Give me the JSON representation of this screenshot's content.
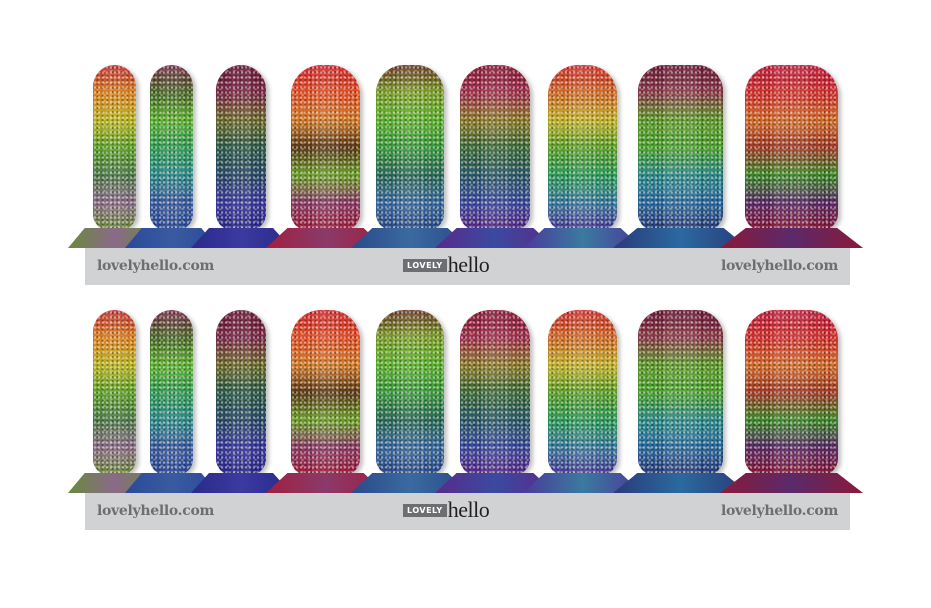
{
  "sheets": [
    {
      "left_url": "lovelyhello.com",
      "logo_box": "LOVELY",
      "logo_word": "hello",
      "right_url": "lovelyhello.com"
    },
    {
      "left_url": "lovelyhello.com",
      "logo_box": "LOVELY",
      "logo_word": "hello",
      "right_url": "lovelyhello.com"
    }
  ],
  "colors": {
    "strip": "#d1d2d4",
    "text": "#6d6e71"
  },
  "nail_palettes": [
    [
      "#c0303a",
      "#d9801f",
      "#b8b420",
      "#5aa02a",
      "#4c7a4a",
      "#8a6a8a",
      "#6a8a3a"
    ],
    [
      "#7a3050",
      "#4a6a2a",
      "#5ab030",
      "#2f9a55",
      "#2a8a8a",
      "#3a5aa0",
      "#2a4a9a"
    ],
    [
      "#6a1a3a",
      "#7a2a4a",
      "#6a6a2a",
      "#2a5a4a",
      "#2a4a6a",
      "#3a3aa0",
      "#2a2a8a"
    ],
    [
      "#d02830",
      "#e0502a",
      "#d07a2a",
      "#5a3a1a",
      "#6aa02a",
      "#8a3a6a",
      "#a02040"
    ],
    [
      "#6a3a2a",
      "#7aa02a",
      "#5ab030",
      "#3a9a40",
      "#2a6a5a",
      "#3a6aa0",
      "#2a4a8a"
    ],
    [
      "#8a1a3a",
      "#a03050",
      "#8a7a2a",
      "#3a6a3a",
      "#2a5a6a",
      "#3a4aa0",
      "#5a2a8a"
    ],
    [
      "#d03030",
      "#d06a2a",
      "#c0b02a",
      "#5aa02a",
      "#2a9a5a",
      "#3a7aa0",
      "#4a3a9a"
    ],
    [
      "#6a1a3a",
      "#8a3a4a",
      "#5a9a2a",
      "#4aa030",
      "#2a8a8a",
      "#2a6aa0",
      "#2a3a7a"
    ],
    [
      "#c02040",
      "#d03030",
      "#d06a2a",
      "#a03a2a",
      "#3a8a2a",
      "#5a2a6a",
      "#8a1a3a"
    ]
  ]
}
